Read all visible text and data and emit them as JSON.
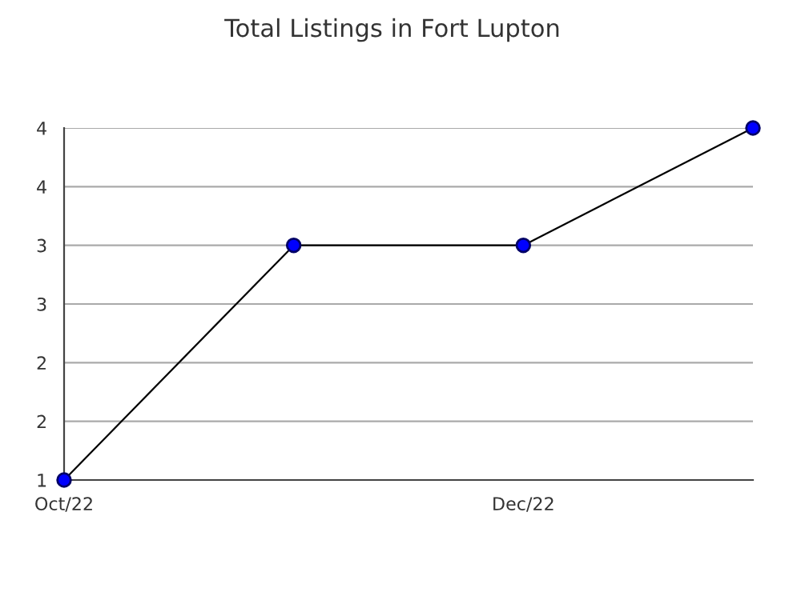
{
  "chart_data": {
    "type": "line",
    "title": "Total Listings in Fort Lupton",
    "categories": [
      "Oct/22",
      null,
      "Dec/22",
      null
    ],
    "series": [
      {
        "color": "#0000ff",
        "values": [
          1,
          3,
          3,
          4
        ]
      }
    ],
    "ylim": [
      1,
      4
    ],
    "yticks": [
      1,
      {
        "value": 1.5,
        "label": "2"
      },
      2,
      {
        "value": 2.5,
        "label": "3"
      },
      3,
      {
        "value": 3.5,
        "label": "4"
      },
      4
    ],
    "grid": "y",
    "marker": "circle",
    "line_style": "solid"
  }
}
